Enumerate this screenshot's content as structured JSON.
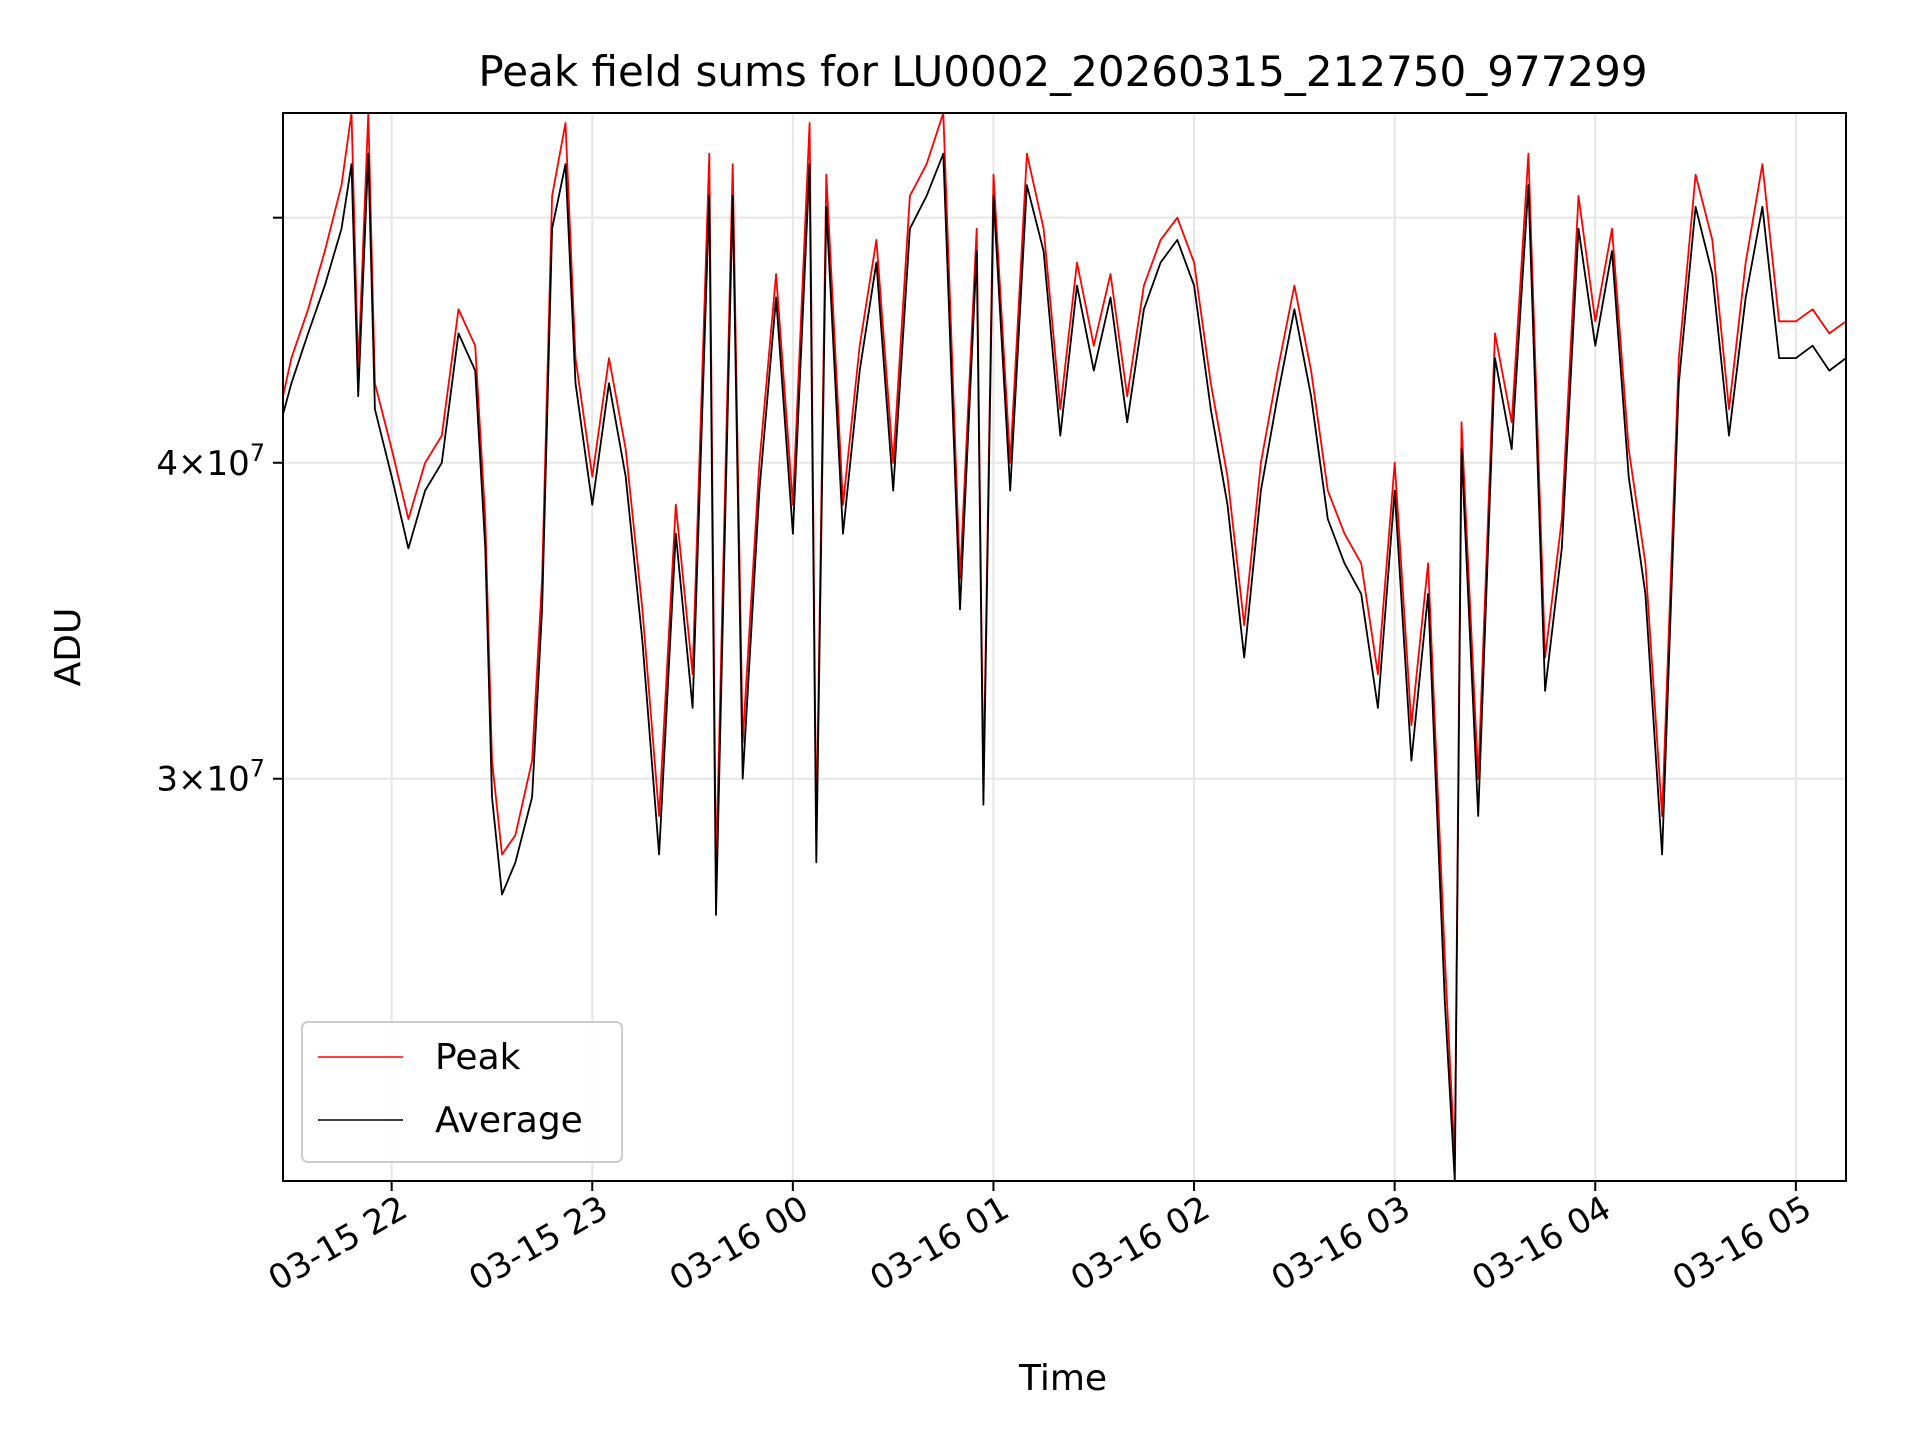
{
  "chart_data": {
    "type": "line",
    "title": "Peak field sums for LU0002_20260315_212750_977299",
    "xlabel": "Time",
    "ylabel": "ADU",
    "yscale": "log",
    "ylim": [
      20800000,
      55000000
    ],
    "xlim": [
      "03-15 21:27:30",
      "03-16 05:15:00"
    ],
    "x_ticks": [
      "03-15 22",
      "03-15 23",
      "03-16 00",
      "03-16 01",
      "03-16 02",
      "03-16 03",
      "03-16 04",
      "03-16 05"
    ],
    "y_ticks": [
      {
        "value": 30000000,
        "label": "3 × 10^7",
        "mantissa": "3",
        "exponent": "7"
      },
      {
        "value": 40000000,
        "label": "4 × 10^7",
        "mantissa": "4",
        "exponent": "7"
      },
      {
        "value": 50000000,
        "label": "",
        "mantissa": "",
        "exponent": ""
      }
    ],
    "grid": true,
    "legend_position": "lower-left",
    "colors": {
      "peak": "#ff0000",
      "average": "#000000"
    },
    "series": [
      {
        "name": "Peak",
        "color": "#ff0000",
        "points": [
          [
            "03-15 21:27:30",
            42500000
          ],
          [
            "03-15 21:30",
            44000000
          ],
          [
            "03-15 21:35",
            46000000
          ],
          [
            "03-15 21:40",
            48500000
          ],
          [
            "03-15 21:45",
            51500000
          ],
          [
            "03-15 21:48",
            55000000
          ],
          [
            "03-15 21:50",
            43500000
          ],
          [
            "03-15 21:53",
            55000000
          ],
          [
            "03-15 21:55",
            43000000
          ],
          [
            "03-15 22:00",
            40500000
          ],
          [
            "03-15 22:05",
            38000000
          ],
          [
            "03-15 22:10",
            40000000
          ],
          [
            "03-15 22:15",
            41000000
          ],
          [
            "03-15 22:20",
            46000000
          ],
          [
            "03-15 22:25",
            44500000
          ],
          [
            "03-15 22:28",
            38000000
          ],
          [
            "03-15 22:30",
            30500000
          ],
          [
            "03-15 22:33",
            28000000
          ],
          [
            "03-15 22:37",
            28500000
          ],
          [
            "03-15 22:42",
            30500000
          ],
          [
            "03-15 22:45",
            36000000
          ],
          [
            "03-15 22:48",
            51000000
          ],
          [
            "03-15 22:52",
            54500000
          ],
          [
            "03-15 22:55",
            44000000
          ],
          [
            "03-15 23:00",
            39500000
          ],
          [
            "03-15 23:05",
            44000000
          ],
          [
            "03-15 23:10",
            40500000
          ],
          [
            "03-15 23:15",
            35000000
          ],
          [
            "03-15 23:20",
            29000000
          ],
          [
            "03-15 23:25",
            38500000
          ],
          [
            "03-15 23:30",
            33000000
          ],
          [
            "03-15 23:35",
            53000000
          ],
          [
            "03-15 23:37",
            27500000
          ],
          [
            "03-15 23:42",
            52500000
          ],
          [
            "03-15 23:45",
            31000000
          ],
          [
            "03-15 23:50",
            40000000
          ],
          [
            "03-15 23:55",
            47500000
          ],
          [
            "03-16 00:00",
            38500000
          ],
          [
            "03-16 00:05",
            54500000
          ],
          [
            "03-16 00:07",
            28500000
          ],
          [
            "03-16 00:10",
            52000000
          ],
          [
            "03-16 00:15",
            38500000
          ],
          [
            "03-16 00:20",
            44500000
          ],
          [
            "03-16 00:25",
            49000000
          ],
          [
            "03-16 00:30",
            40000000
          ],
          [
            "03-16 00:35",
            51000000
          ],
          [
            "03-16 00:40",
            52500000
          ],
          [
            "03-16 00:45",
            55000000
          ],
          [
            "03-16 00:50",
            36000000
          ],
          [
            "03-16 00:55",
            49500000
          ],
          [
            "03-16 00:57",
            29800000
          ],
          [
            "03-16 01:00",
            52000000
          ],
          [
            "03-16 01:05",
            40000000
          ],
          [
            "03-16 01:10",
            53000000
          ],
          [
            "03-16 01:15",
            49500000
          ],
          [
            "03-16 01:20",
            42000000
          ],
          [
            "03-16 01:25",
            48000000
          ],
          [
            "03-16 01:30",
            44500000
          ],
          [
            "03-16 01:35",
            47500000
          ],
          [
            "03-16 01:40",
            42500000
          ],
          [
            "03-16 01:45",
            47000000
          ],
          [
            "03-16 01:50",
            49000000
          ],
          [
            "03-16 01:55",
            50000000
          ],
          [
            "03-16 02:00",
            48000000
          ],
          [
            "03-16 02:05",
            43000000
          ],
          [
            "03-16 02:10",
            39500000
          ],
          [
            "03-16 02:15",
            34500000
          ],
          [
            "03-16 02:20",
            40000000
          ],
          [
            "03-16 02:25",
            43500000
          ],
          [
            "03-16 02:30",
            47000000
          ],
          [
            "03-16 02:35",
            43500000
          ],
          [
            "03-16 02:40",
            39000000
          ],
          [
            "03-16 02:45",
            37500000
          ],
          [
            "03-16 02:50",
            36500000
          ],
          [
            "03-16 02:55",
            33000000
          ],
          [
            "03-16 03:00",
            40000000
          ],
          [
            "03-16 03:05",
            31500000
          ],
          [
            "03-16 03:10",
            36500000
          ],
          [
            "03-16 03:15",
            25500000
          ],
          [
            "03-16 03:18",
            21200000
          ],
          [
            "03-16 03:20",
            41500000
          ],
          [
            "03-16 03:25",
            30000000
          ],
          [
            "03-16 03:30",
            45000000
          ],
          [
            "03-16 03:35",
            41500000
          ],
          [
            "03-16 03:40",
            53000000
          ],
          [
            "03-16 03:45",
            33500000
          ],
          [
            "03-16 03:50",
            38000000
          ],
          [
            "03-16 03:55",
            51000000
          ],
          [
            "03-16 04:00",
            45500000
          ],
          [
            "03-16 04:05",
            49500000
          ],
          [
            "03-16 04:10",
            40500000
          ],
          [
            "03-16 04:15",
            36500000
          ],
          [
            "03-16 04:20",
            29000000
          ],
          [
            "03-16 04:25",
            44000000
          ],
          [
            "03-16 04:30",
            52000000
          ],
          [
            "03-16 04:35",
            49000000
          ],
          [
            "03-16 04:40",
            42000000
          ],
          [
            "03-16 04:45",
            48000000
          ],
          [
            "03-16 04:50",
            52500000
          ],
          [
            "03-16 04:55",
            45500000
          ],
          [
            "03-16 05:00",
            45500000
          ],
          [
            "03-16 05:05",
            46000000
          ],
          [
            "03-16 05:10",
            45000000
          ],
          [
            "03-16 05:15",
            45500000
          ]
        ]
      },
      {
        "name": "Average",
        "color": "#000000",
        "points": [
          [
            "03-15 21:27:30",
            41800000
          ],
          [
            "03-15 21:30",
            43000000
          ],
          [
            "03-15 21:35",
            45000000
          ],
          [
            "03-15 21:40",
            47000000
          ],
          [
            "03-15 21:45",
            49500000
          ],
          [
            "03-15 21:48",
            52500000
          ],
          [
            "03-15 21:50",
            42500000
          ],
          [
            "03-15 21:53",
            53000000
          ],
          [
            "03-15 21:55",
            42000000
          ],
          [
            "03-15 22:00",
            39500000
          ],
          [
            "03-15 22:05",
            37000000
          ],
          [
            "03-15 22:10",
            39000000
          ],
          [
            "03-15 22:15",
            40000000
          ],
          [
            "03-15 22:20",
            45000000
          ],
          [
            "03-15 22:25",
            43500000
          ],
          [
            "03-15 22:28",
            37000000
          ],
          [
            "03-15 22:30",
            29500000
          ],
          [
            "03-15 22:33",
            27000000
          ],
          [
            "03-15 22:37",
            27800000
          ],
          [
            "03-15 22:42",
            29500000
          ],
          [
            "03-15 22:45",
            35000000
          ],
          [
            "03-15 22:48",
            49500000
          ],
          [
            "03-15 22:52",
            52500000
          ],
          [
            "03-15 22:55",
            43000000
          ],
          [
            "03-15 23:00",
            38500000
          ],
          [
            "03-15 23:05",
            43000000
          ],
          [
            "03-15 23:10",
            39500000
          ],
          [
            "03-15 23:15",
            34000000
          ],
          [
            "03-15 23:20",
            28000000
          ],
          [
            "03-15 23:25",
            37500000
          ],
          [
            "03-15 23:30",
            32000000
          ],
          [
            "03-15 23:35",
            51000000
          ],
          [
            "03-15 23:37",
            26500000
          ],
          [
            "03-15 23:42",
            51000000
          ],
          [
            "03-15 23:45",
            30000000
          ],
          [
            "03-15 23:50",
            39000000
          ],
          [
            "03-15 23:55",
            46500000
          ],
          [
            "03-16 00:00",
            37500000
          ],
          [
            "03-16 00:05",
            52500000
          ],
          [
            "03-16 00:07",
            27800000
          ],
          [
            "03-16 00:10",
            50500000
          ],
          [
            "03-16 00:15",
            37500000
          ],
          [
            "03-16 00:20",
            43500000
          ],
          [
            "03-16 00:25",
            48000000
          ],
          [
            "03-16 00:30",
            39000000
          ],
          [
            "03-16 00:35",
            49500000
          ],
          [
            "03-16 00:40",
            51000000
          ],
          [
            "03-16 00:45",
            53000000
          ],
          [
            "03-16 00:50",
            35000000
          ],
          [
            "03-16 00:55",
            48500000
          ],
          [
            "03-16 00:57",
            29300000
          ],
          [
            "03-16 01:00",
            51000000
          ],
          [
            "03-16 01:05",
            39000000
          ],
          [
            "03-16 01:10",
            51500000
          ],
          [
            "03-16 01:15",
            48500000
          ],
          [
            "03-16 01:20",
            41000000
          ],
          [
            "03-16 01:25",
            47000000
          ],
          [
            "03-16 01:30",
            43500000
          ],
          [
            "03-16 01:35",
            46500000
          ],
          [
            "03-16 01:40",
            41500000
          ],
          [
            "03-16 01:45",
            46000000
          ],
          [
            "03-16 01:50",
            48000000
          ],
          [
            "03-16 01:55",
            49000000
          ],
          [
            "03-16 02:00",
            47000000
          ],
          [
            "03-16 02:05",
            42000000
          ],
          [
            "03-16 02:10",
            38500000
          ],
          [
            "03-16 02:15",
            33500000
          ],
          [
            "03-16 02:20",
            39000000
          ],
          [
            "03-16 02:25",
            42500000
          ],
          [
            "03-16 02:30",
            46000000
          ],
          [
            "03-16 02:35",
            42500000
          ],
          [
            "03-16 02:40",
            38000000
          ],
          [
            "03-16 02:45",
            36500000
          ],
          [
            "03-16 02:50",
            35500000
          ],
          [
            "03-16 02:55",
            32000000
          ],
          [
            "03-16 03:00",
            39000000
          ],
          [
            "03-16 03:05",
            30500000
          ],
          [
            "03-16 03:10",
            35500000
          ],
          [
            "03-16 03:15",
            24500000
          ],
          [
            "03-16 03:18",
            20800000
          ],
          [
            "03-16 03:20",
            40500000
          ],
          [
            "03-16 03:25",
            29000000
          ],
          [
            "03-16 03:30",
            44000000
          ],
          [
            "03-16 03:35",
            40500000
          ],
          [
            "03-16 03:40",
            51500000
          ],
          [
            "03-16 03:45",
            32500000
          ],
          [
            "03-16 03:50",
            37000000
          ],
          [
            "03-16 03:55",
            49500000
          ],
          [
            "03-16 04:00",
            44500000
          ],
          [
            "03-16 04:05",
            48500000
          ],
          [
            "03-16 04:10",
            39500000
          ],
          [
            "03-16 04:15",
            35500000
          ],
          [
            "03-16 04:20",
            28000000
          ],
          [
            "03-16 04:25",
            43000000
          ],
          [
            "03-16 04:30",
            50500000
          ],
          [
            "03-16 04:35",
            47500000
          ],
          [
            "03-16 04:40",
            41000000
          ],
          [
            "03-16 04:45",
            46500000
          ],
          [
            "03-16 04:50",
            50500000
          ],
          [
            "03-16 04:55",
            44000000
          ],
          [
            "03-16 05:00",
            44000000
          ],
          [
            "03-16 05:05",
            44500000
          ],
          [
            "03-16 05:10",
            43500000
          ],
          [
            "03-16 05:15",
            44000000
          ]
        ]
      }
    ]
  }
}
